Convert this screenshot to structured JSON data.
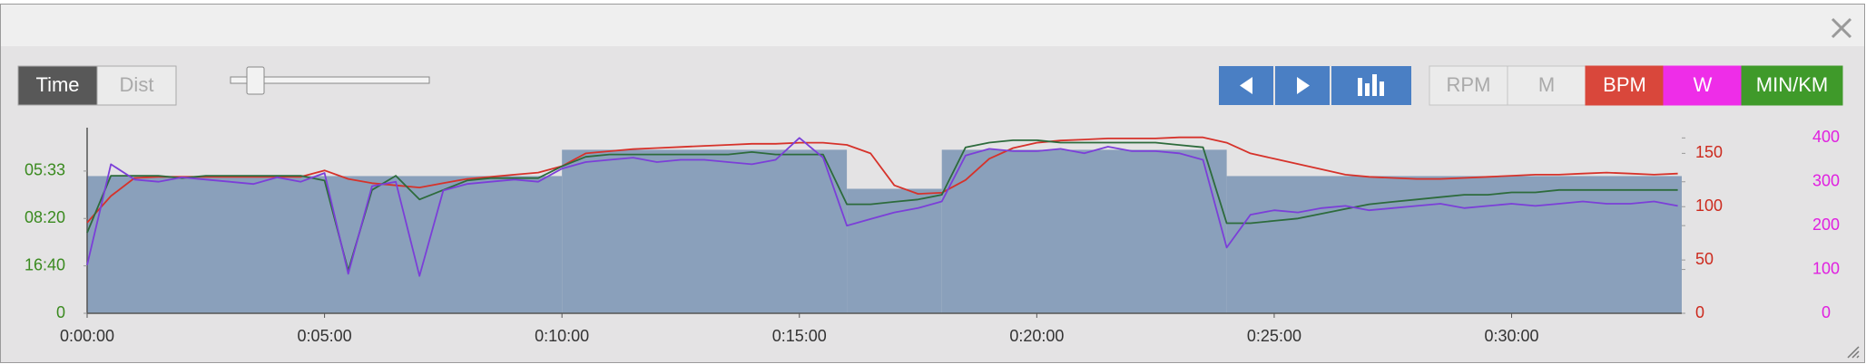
{
  "toolbar": {
    "mode_buttons": [
      "Time",
      "Dist"
    ],
    "metric_buttons": [
      "RPM",
      "M"
    ]
  },
  "chart_data": {
    "type": "line",
    "x": [
      0,
      30,
      60,
      90,
      120,
      150,
      180,
      210,
      240,
      270,
      300,
      330,
      360,
      390,
      420,
      450,
      480,
      510,
      540,
      570,
      600,
      630,
      660,
      690,
      720,
      750,
      780,
      810,
      840,
      870,
      900,
      930,
      960,
      990,
      1020,
      1050,
      1080,
      1110,
      1140,
      1170,
      1200,
      1230,
      1260,
      1290,
      1320,
      1350,
      1380,
      1410,
      1440,
      1470,
      1500,
      1530,
      1560,
      1590,
      1620,
      1650,
      1680,
      1710,
      1740,
      1770,
      1800,
      1830,
      1860,
      1890,
      1920,
      1950,
      1980,
      2010
    ],
    "xlim": [
      0,
      2015
    ],
    "xticks": [
      {
        "value": 0,
        "label": "0:00:00"
      },
      {
        "value": 300,
        "label": "0:05:00"
      },
      {
        "value": 600,
        "label": "0:10:00"
      },
      {
        "value": 900,
        "label": "0:15:00"
      },
      {
        "value": 1200,
        "label": "0:20:00"
      },
      {
        "value": 1500,
        "label": "0:25:00"
      },
      {
        "value": 1800,
        "label": "0:30:00"
      }
    ],
    "ylim": [
      0,
      3.8
    ],
    "yticks": [
      0,
      {
        "value": 1,
        "label": "16:40"
      },
      {
        "value": 2,
        "label": "08:20"
      },
      {
        "value": 3,
        "label": "05:33"
      }
    ],
    "y_color": "#3a8a1f",
    "y2lim": [
      0,
      169
    ],
    "y2ticks": [
      0,
      50,
      100,
      150
    ],
    "y2_color": "#cc2a1e",
    "y3lim": [
      0,
      411
    ],
    "y3ticks": [
      0,
      100,
      200,
      300,
      400
    ],
    "y3_color": "#e020e0",
    "target": {
      "color": "#8aa0bb",
      "segments": [
        {
          "start": 0,
          "end": 600,
          "value": 313
        },
        {
          "start": 600,
          "end": 960,
          "value": 373
        },
        {
          "start": 960,
          "end": 1080,
          "value": 284
        },
        {
          "start": 1080,
          "end": 1440,
          "value": 373
        },
        {
          "start": 1440,
          "end": 2015,
          "value": 313
        }
      ]
    },
    "series": [
      {
        "name": "BPM",
        "axis": "y2",
        "color": "#d6322a",
        "button_color": "#d9473b",
        "values": [
          85,
          110,
          127,
          128,
          128,
          128,
          128,
          128,
          128,
          128,
          134,
          126,
          122,
          120,
          118,
          122,
          126,
          128,
          130,
          132,
          138,
          150,
          152,
          154,
          155,
          156,
          157,
          158,
          159,
          159,
          160,
          160,
          158,
          150,
          120,
          112,
          113,
          125,
          145,
          155,
          160,
          162,
          163,
          164,
          164,
          164,
          165,
          165,
          160,
          150,
          145,
          140,
          135,
          130,
          128,
          127,
          126,
          126,
          127,
          128,
          129,
          130,
          130,
          131,
          132,
          131,
          130,
          131
        ]
      },
      {
        "name": "W",
        "axis": "y3",
        "color": "#7b3fd8",
        "button_color": "#ee2de8",
        "values": [
          110,
          340,
          305,
          300,
          310,
          305,
          300,
          295,
          310,
          300,
          320,
          90,
          290,
          300,
          85,
          280,
          295,
          300,
          305,
          300,
          330,
          345,
          350,
          355,
          345,
          350,
          350,
          345,
          340,
          350,
          400,
          355,
          200,
          215,
          230,
          240,
          255,
          360,
          375,
          370,
          370,
          375,
          365,
          380,
          370,
          370,
          365,
          350,
          150,
          225,
          235,
          230,
          240,
          245,
          235,
          240,
          245,
          250,
          240,
          245,
          250,
          245,
          250,
          255,
          250,
          250,
          255,
          245
        ]
      },
      {
        "name": "MIN/KM",
        "axis": "y",
        "color": "#2d6b3c",
        "button_color": "#3f9a2a",
        "values": [
          1.7,
          2.9,
          2.9,
          2.9,
          2.85,
          2.9,
          2.9,
          2.9,
          2.9,
          2.9,
          2.8,
          0.9,
          2.6,
          2.9,
          2.4,
          2.6,
          2.8,
          2.85,
          2.85,
          2.85,
          3.1,
          3.3,
          3.35,
          3.35,
          3.35,
          3.35,
          3.35,
          3.35,
          3.4,
          3.35,
          3.35,
          3.35,
          2.3,
          2.3,
          2.35,
          2.4,
          2.5,
          3.5,
          3.6,
          3.65,
          3.65,
          3.6,
          3.6,
          3.6,
          3.6,
          3.6,
          3.55,
          3.5,
          1.9,
          1.9,
          1.95,
          2.0,
          2.1,
          2.2,
          2.3,
          2.35,
          2.4,
          2.45,
          2.5,
          2.5,
          2.55,
          2.55,
          2.6,
          2.6,
          2.6,
          2.6,
          2.6,
          2.6
        ]
      }
    ]
  }
}
